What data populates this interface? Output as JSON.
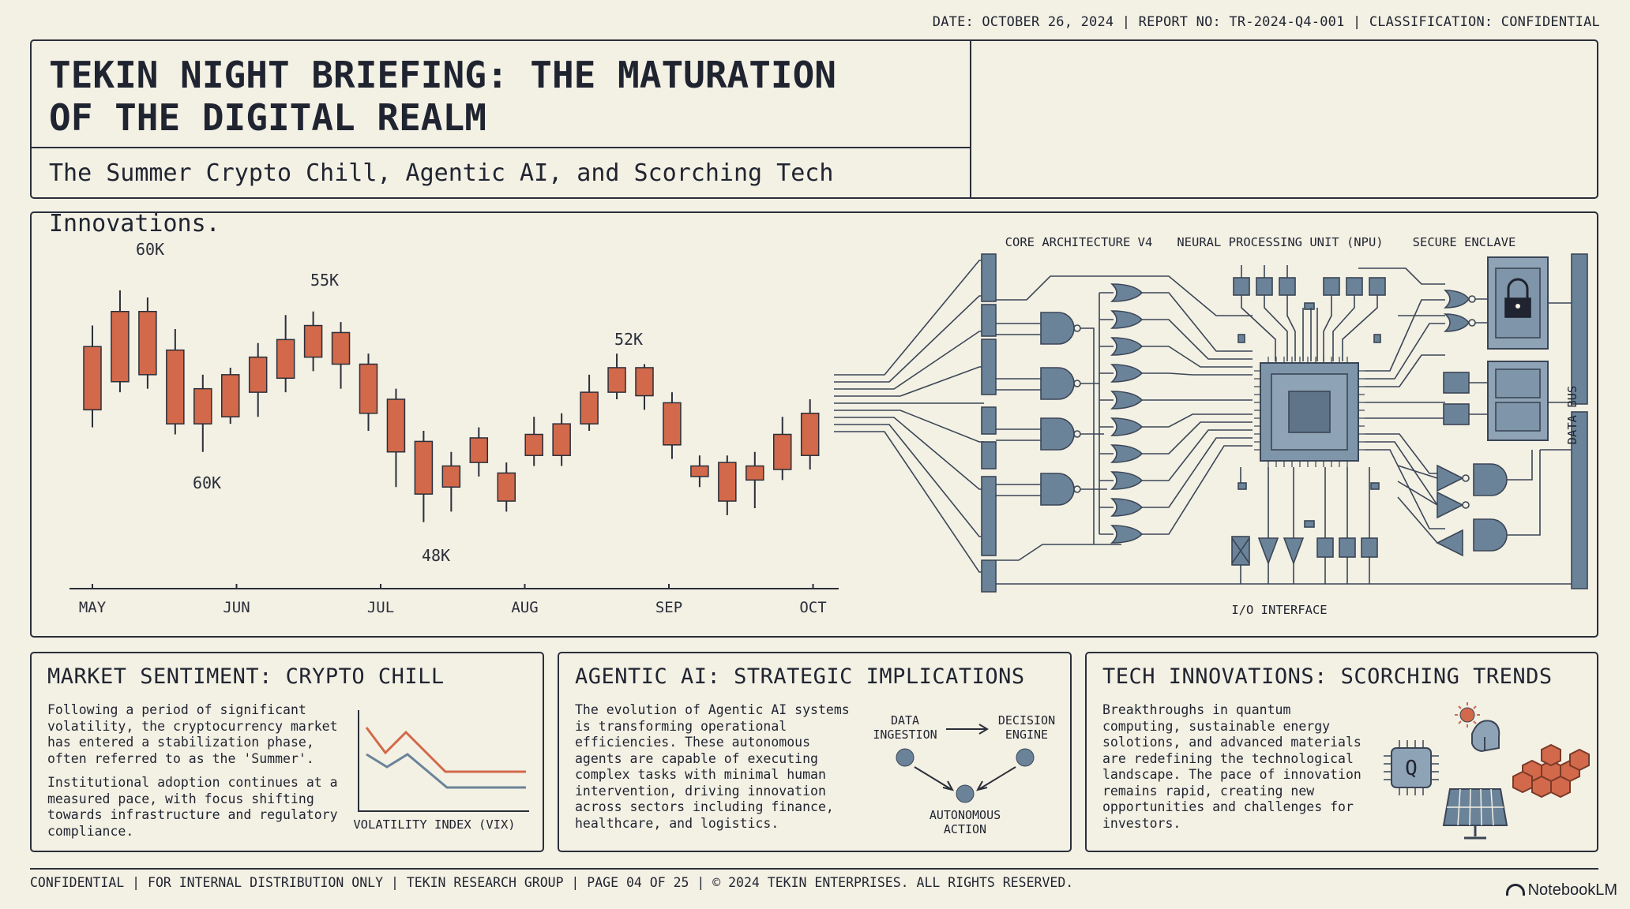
{
  "meta": "DATE: OCTOBER 26, 2024 | REPORT NO: TR-2024-Q4-001 | CLASSIFICATION: CONFIDENTIAL",
  "header": {
    "title_line1": "TEKIN NIGHT BRIEFING: THE MATURATION",
    "title_line2": "OF THE DIGITAL REALM",
    "subtitle": "The Summer Crypto Chill, Agentic AI, and Scorching Tech Innovations."
  },
  "chart_data": {
    "type": "candlestick",
    "months": [
      "MAY",
      "JUN",
      "JUL",
      "AUG",
      "SEP",
      "OCT"
    ],
    "annotations": [
      "60K",
      "60K",
      "55K",
      "48K",
      "52K"
    ],
    "candles": [
      {
        "o": 43.5,
        "c": 52.5,
        "h": 55.5,
        "l": 41.0
      },
      {
        "o": 47.5,
        "c": 57.5,
        "h": 60.5,
        "l": 46.0
      },
      {
        "o": 48.5,
        "c": 57.5,
        "h": 59.5,
        "l": 46.5
      },
      {
        "o": 52.0,
        "c": 41.5,
        "h": 55.0,
        "l": 40.0
      },
      {
        "o": 41.5,
        "c": 46.5,
        "h": 48.5,
        "l": 37.5
      },
      {
        "o": 42.5,
        "c": 48.5,
        "h": 49.5,
        "l": 41.5
      },
      {
        "o": 46.0,
        "c": 51.0,
        "h": 53.0,
        "l": 42.5
      },
      {
        "o": 48.0,
        "c": 53.5,
        "h": 57.0,
        "l": 46.0
      },
      {
        "o": 51.0,
        "c": 55.5,
        "h": 57.5,
        "l": 49.0
      },
      {
        "o": 54.5,
        "c": 50.0,
        "h": 56.0,
        "l": 46.5
      },
      {
        "o": 50.0,
        "c": 43.0,
        "h": 51.5,
        "l": 40.5
      },
      {
        "o": 45.0,
        "c": 37.5,
        "h": 46.5,
        "l": 32.5
      },
      {
        "o": 39.0,
        "c": 31.5,
        "h": 40.5,
        "l": 27.5
      },
      {
        "o": 32.5,
        "c": 35.5,
        "h": 37.5,
        "l": 29.0
      },
      {
        "o": 36.0,
        "c": 39.5,
        "h": 41.0,
        "l": 34.0
      },
      {
        "o": 34.5,
        "c": 30.5,
        "h": 36.0,
        "l": 29.0
      },
      {
        "o": 37.0,
        "c": 40.0,
        "h": 42.5,
        "l": 35.5
      },
      {
        "o": 41.5,
        "c": 37.0,
        "h": 43.0,
        "l": 35.5
      },
      {
        "o": 41.5,
        "c": 46.0,
        "h": 48.5,
        "l": 40.5
      },
      {
        "o": 46.0,
        "c": 49.5,
        "h": 51.5,
        "l": 45.0
      },
      {
        "o": 49.5,
        "c": 45.5,
        "h": 50.0,
        "l": 43.5
      },
      {
        "o": 44.5,
        "c": 38.5,
        "h": 46.0,
        "l": 36.5
      },
      {
        "o": 35.5,
        "c": 34.0,
        "h": 37.0,
        "l": 32.5
      },
      {
        "o": 36.0,
        "c": 30.5,
        "h": 37.0,
        "l": 28.5
      },
      {
        "o": 33.5,
        "c": 35.5,
        "h": 37.5,
        "l": 29.5
      },
      {
        "o": 35.0,
        "c": 40.0,
        "h": 42.5,
        "l": 33.5
      },
      {
        "o": 37.0,
        "c": 43.0,
        "h": 45.0,
        "l": 35.0
      }
    ]
  },
  "circuit": {
    "label_core": "CORE ARCHITECTURE V4",
    "label_npu": "NEURAL PROCESSING UNIT (NPU)",
    "label_secure": "SECURE ENCLAVE",
    "label_io": "I/O INTERFACE",
    "label_bus": "DATA BUS"
  },
  "panels": {
    "market": {
      "title": "MARKET SENTIMENT: CRYPTO CHILL",
      "p1": "Following a period of significant volatility, the cryptocurrency market has entered a stabilization phase, often referred to as the 'Summer'.",
      "p2": "Institutional adoption continues at a measured pace, with focus shifting towards infrastructure and regulatory compliance.",
      "vix_label": "VOLATILITY INDEX (VIX)"
    },
    "agentic": {
      "title": "AGENTIC AI: STRATEGIC IMPLICATIONS",
      "p1": "The evolution of Agentic AI systems is transforming operational efficiencies. These autonomous agents are capable of executing complex tasks with minimal human intervention, driving innovation across sectors including finance, healthcare, and logistics.",
      "node1": [
        "DATA",
        "INGESTION"
      ],
      "node2": [
        "DECISION",
        "ENGINE"
      ],
      "node3": [
        "AUTONOMOUS",
        "ACTION"
      ]
    },
    "tech": {
      "title": "TECH INNOVATIONS: SCORCHING TRENDS",
      "p1": "Breakthroughs in quantum computing, sustainable energy solotions, and advanced materials are redefining the technological landscape. The pace of innovation remains rapid, creating new opportunities and challenges for investors.",
      "q_letter": "Q"
    }
  },
  "footer": "CONFIDENTIAL | FOR INTERNAL DISTRIBUTION ONLY | TEKIN RESEARCH GROUP | PAGE 04 OF 25 | © 2024 TEKIN ENTERPRISES. ALL RIGHTS RESERVED.",
  "brand": "NotebookLM",
  "colors": {
    "candle": "#d2694a",
    "circuit": "#6b8399",
    "ink": "#2a2f3a",
    "bg": "#f3f0e4"
  }
}
